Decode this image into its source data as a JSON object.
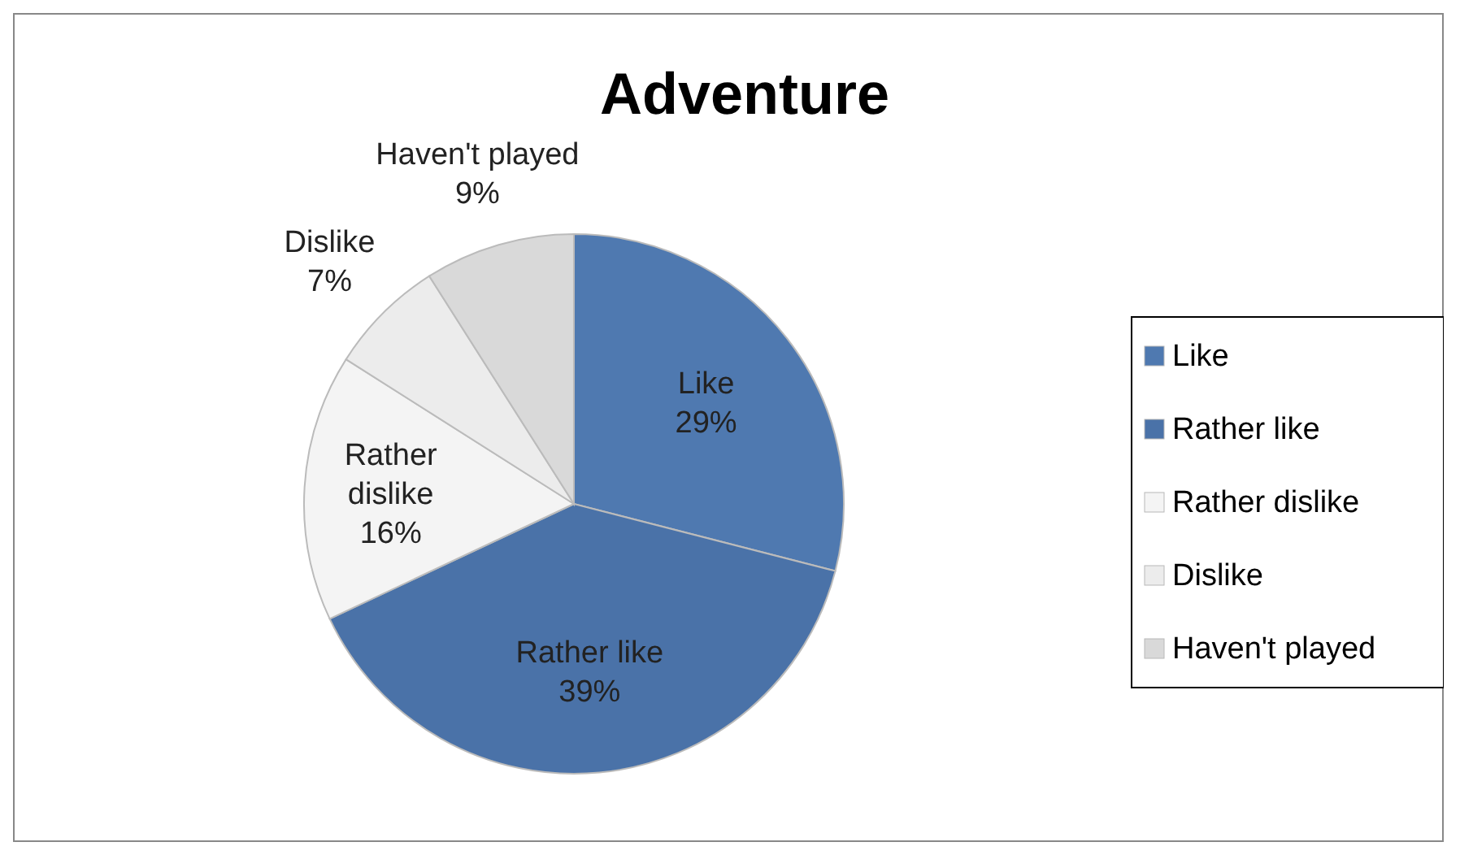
{
  "chart_data": {
    "type": "pie",
    "title": "Adventure",
    "categories": [
      "Like",
      "Rather like",
      "Rather dislike",
      "Dislike",
      "Haven't played"
    ],
    "values": [
      29,
      39,
      16,
      7,
      9
    ],
    "value_labels": [
      "29%",
      "39%",
      "16%",
      "7%",
      "9%"
    ],
    "colors": [
      "#4f79b0",
      "#4a72a8",
      "#f4f4f4",
      "#ececec",
      "#d9d9d9"
    ],
    "legend": "right"
  }
}
